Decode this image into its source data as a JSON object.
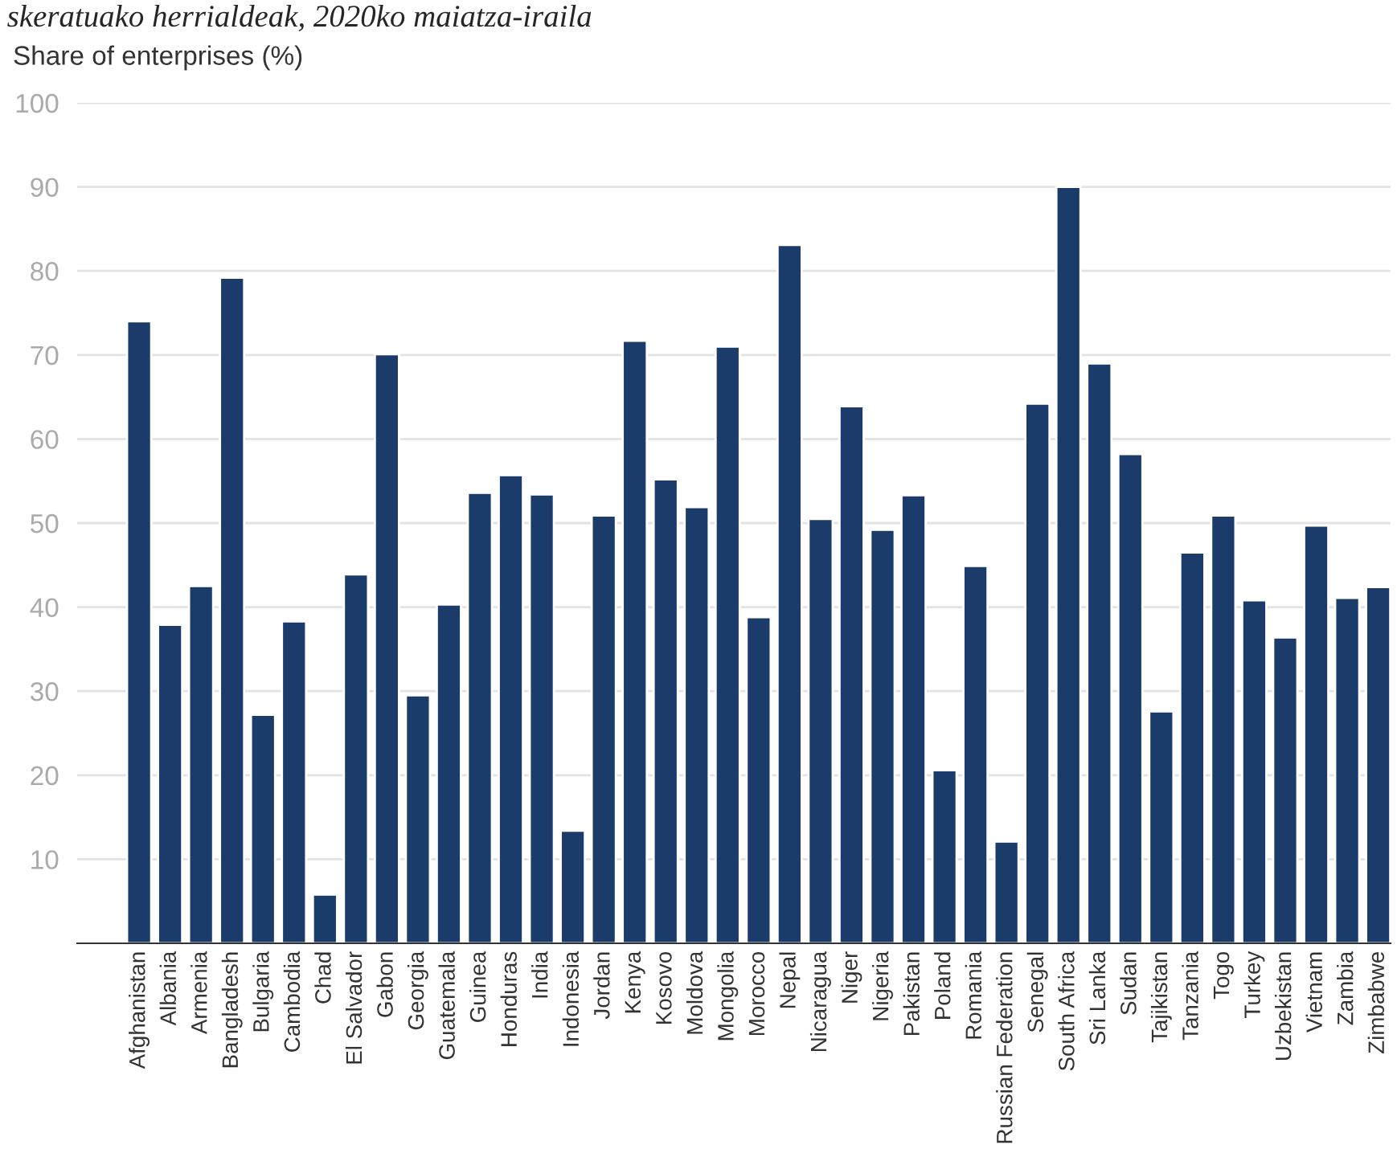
{
  "chart_data": {
    "type": "bar",
    "title": "skeratuako herrialdeak, 2020ko maiatza-iraila",
    "ylabel": "Share of enterprises (%)",
    "categories": [
      "Afghanistan",
      "Albania",
      "Armenia",
      "Bangladesh",
      "Bulgaria",
      "Cambodia",
      "Chad",
      "El Salvador",
      "Gabon",
      "Georgia",
      "Guatemala",
      "Guinea",
      "Honduras",
      "India",
      "Indonesia",
      "Jordan",
      "Kenya",
      "Kosovo",
      "Moldova",
      "Mongolia",
      "Morocco",
      "Nepal",
      "Nicaragua",
      "Niger",
      "Nigeria",
      "Pakistan",
      "Poland",
      "Romania",
      "Russian Federation",
      "Senegal",
      "South Africa",
      "Sri Lanka",
      "Sudan",
      "Tajikistan",
      "Tanzania",
      "Togo",
      "Turkey",
      "Uzbekistan",
      "Vietnam",
      "Zambia",
      "Zimbabwe"
    ],
    "values": [
      74.0,
      37.9,
      42.5,
      79.2,
      27.2,
      38.3,
      5.8,
      43.9,
      70.1,
      29.5,
      40.3,
      53.6,
      55.7,
      53.4,
      13.4,
      50.9,
      71.7,
      55.2,
      51.9,
      71.0,
      38.8,
      83.1,
      50.5,
      63.9,
      49.2,
      53.3,
      20.6,
      44.9,
      12.1,
      64.2,
      90.0,
      69.0,
      58.2,
      27.6,
      46.5,
      50.9,
      40.8,
      36.4,
      49.7,
      41.1,
      42.4
    ],
    "color": "#1b3c6b",
    "ylim": [
      0,
      100
    ],
    "yticks": [
      10,
      20,
      30,
      40,
      50,
      60,
      70,
      80,
      90,
      100
    ],
    "grid": "y"
  }
}
